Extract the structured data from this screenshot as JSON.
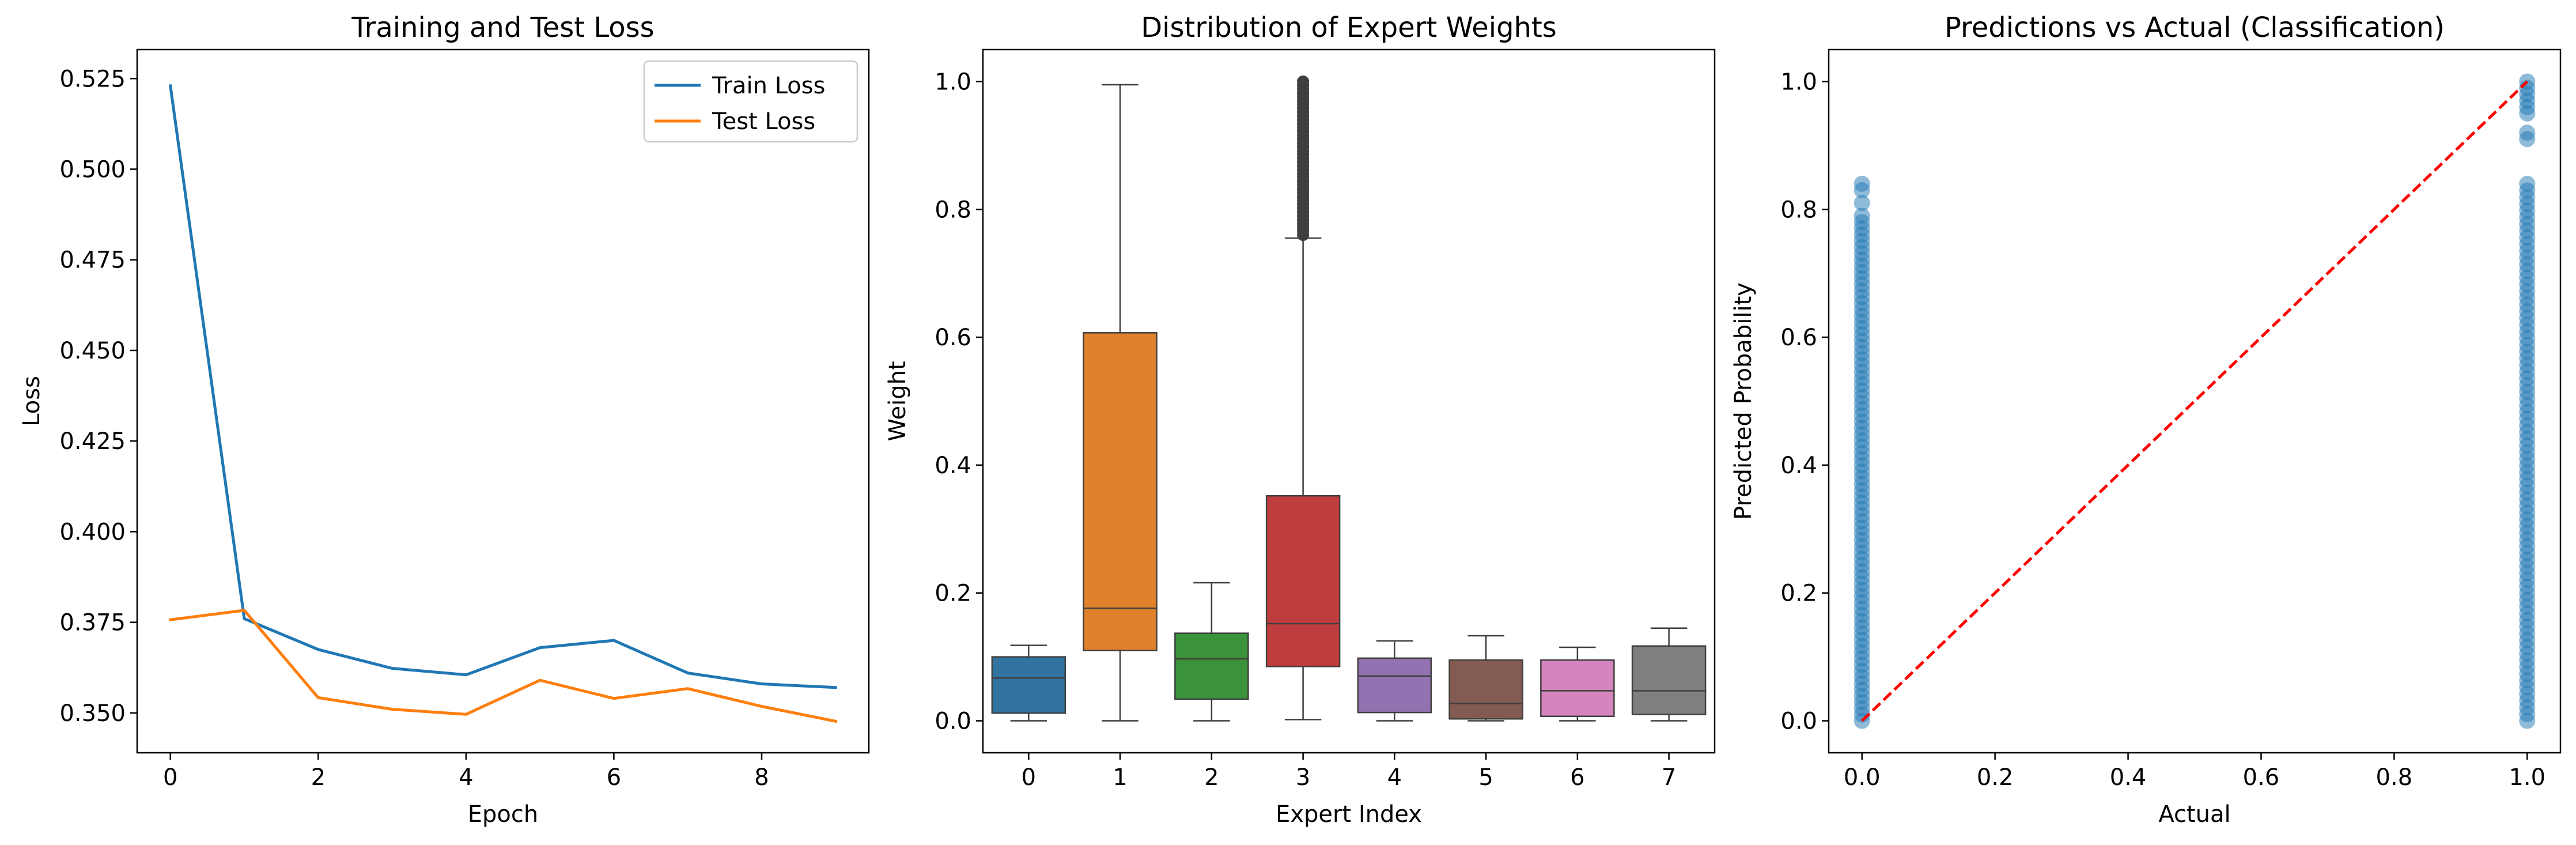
{
  "colors": {
    "train": "#1f77b4",
    "test": "#ff7f0e",
    "scatter": "#1f77b4",
    "diagonal": "#ff0000",
    "box_edge": "#3f3f3f"
  },
  "chart_data": [
    {
      "type": "line",
      "title": "Training and Test Loss",
      "xlabel": "Epoch",
      "ylabel": "Loss",
      "xlim": [
        -0.45,
        9.45
      ],
      "ylim": [
        0.339,
        0.533
      ],
      "xticks": [
        "0",
        "2",
        "4",
        "6",
        "8"
      ],
      "yticks": [
        "0.350",
        "0.375",
        "0.400",
        "0.425",
        "0.450",
        "0.475",
        "0.500",
        "0.525"
      ],
      "legend_position": "top-right",
      "x": [
        0,
        1,
        2,
        3,
        4,
        5,
        6,
        7,
        8,
        9
      ],
      "series": [
        {
          "name": "Train Loss",
          "values": [
            0.523,
            0.376,
            0.3675,
            0.3623,
            0.3605,
            0.368,
            0.37,
            0.361,
            0.358,
            0.357
          ]
        },
        {
          "name": "Test Loss",
          "values": [
            0.3757,
            0.3783,
            0.3542,
            0.351,
            0.3496,
            0.359,
            0.354,
            0.3567,
            0.3518,
            0.3477
          ]
        }
      ]
    },
    {
      "type": "box",
      "title": "Distribution of Expert Weights",
      "xlabel": "Expert Index",
      "ylabel": "Weight",
      "ylim": [
        -0.05,
        1.05
      ],
      "yticks": [
        "0.0",
        "0.2",
        "0.4",
        "0.6",
        "0.8",
        "1.0"
      ],
      "categories": [
        "0",
        "1",
        "2",
        "3",
        "4",
        "5",
        "6",
        "7"
      ],
      "boxes": [
        {
          "min": 0.0,
          "q1": 0.012,
          "median": 0.067,
          "q3": 0.1,
          "max": 0.118,
          "color": "#3274a1"
        },
        {
          "min": 0.0,
          "q1": 0.11,
          "median": 0.176,
          "q3": 0.607,
          "max": 0.995,
          "color": "#e1812c"
        },
        {
          "min": 0.0,
          "q1": 0.034,
          "median": 0.097,
          "q3": 0.137,
          "max": 0.216,
          "color": "#3a923a"
        },
        {
          "min": 0.002,
          "q1": 0.085,
          "median": 0.152,
          "q3": 0.352,
          "max": 0.755,
          "color": "#c03d3e",
          "outliers_range": [
            0.76,
            1.0
          ]
        },
        {
          "min": 0.0,
          "q1": 0.013,
          "median": 0.07,
          "q3": 0.098,
          "max": 0.125,
          "color": "#9372b2"
        },
        {
          "min": 0.0,
          "q1": 0.003,
          "median": 0.027,
          "q3": 0.095,
          "max": 0.133,
          "color": "#845b53"
        },
        {
          "min": 0.0,
          "q1": 0.007,
          "median": 0.047,
          "q3": 0.095,
          "max": 0.115,
          "color": "#d684bd"
        },
        {
          "min": 0.0,
          "q1": 0.01,
          "median": 0.047,
          "q3": 0.117,
          "max": 0.145,
          "color": "#7f7f7f"
        }
      ]
    },
    {
      "type": "scatter",
      "title": "Predictions vs Actual (Classification)",
      "xlabel": "Actual",
      "ylabel": "Predicted Probability",
      "xlim": [
        -0.05,
        1.05
      ],
      "ylim": [
        -0.05,
        1.05
      ],
      "xticks": [
        "0.0",
        "0.2",
        "0.4",
        "0.6",
        "0.8",
        "1.0"
      ],
      "yticks": [
        "0.0",
        "0.2",
        "0.4",
        "0.6",
        "0.8",
        "1.0"
      ],
      "reference_line": {
        "from": [
          0,
          0
        ],
        "to": [
          1,
          1
        ],
        "style": "dashed"
      },
      "class_ranges": [
        {
          "x": 0,
          "y_min": 0.0,
          "y_max": 0.84,
          "dense_to": 0.78
        },
        {
          "x": 1,
          "y_min": 0.0,
          "y_max": 1.0,
          "dense_to": 0.84,
          "upper_points": [
            0.91,
            0.92,
            0.95,
            0.96,
            0.97,
            0.98,
            0.99,
            1.0
          ]
        }
      ]
    }
  ]
}
